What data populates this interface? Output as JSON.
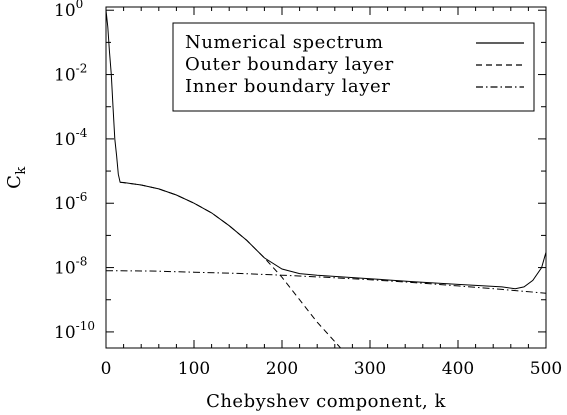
{
  "chart_data": {
    "type": "line",
    "title": "",
    "xlabel": "Chebyshev component, k",
    "ylabel": "C",
    "ylabel_subscript": "k",
    "xlim": [
      0,
      500
    ],
    "ylim_log10": [
      -10.5,
      0.1
    ],
    "yscale": "log",
    "grid": false,
    "legend_position": "top-right",
    "x_ticks": [
      "0",
      "100",
      "200",
      "300",
      "400",
      "500"
    ],
    "y_ticks": [
      {
        "base": "10",
        "exp": "0"
      },
      {
        "base": "10",
        "exp": "-2"
      },
      {
        "base": "10",
        "exp": "-4"
      },
      {
        "base": "10",
        "exp": "-6"
      },
      {
        "base": "10",
        "exp": "-8"
      },
      {
        "base": "10",
        "exp": "-10"
      }
    ],
    "series": [
      {
        "name": "Numerical spectrum",
        "style": "solid",
        "points": [
          [
            0,
            1.0
          ],
          [
            2,
            0.3
          ],
          [
            4,
            0.05
          ],
          [
            6,
            0.01
          ],
          [
            8,
            0.001
          ],
          [
            10,
            0.0001
          ],
          [
            12,
            3e-05
          ],
          [
            14,
            8e-06
          ],
          [
            16,
            4.5e-06
          ],
          [
            20,
            4.4e-06
          ],
          [
            40,
            3.7e-06
          ],
          [
            60,
            2.8e-06
          ],
          [
            80,
            1.8e-06
          ],
          [
            100,
            1e-06
          ],
          [
            120,
            5e-07
          ],
          [
            140,
            2e-07
          ],
          [
            160,
            7e-08
          ],
          [
            180,
            2e-08
          ],
          [
            200,
            9e-09
          ],
          [
            220,
            6.5e-09
          ],
          [
            240,
            5.8e-09
          ],
          [
            300,
            4.5e-09
          ],
          [
            350,
            3.6e-09
          ],
          [
            400,
            3e-09
          ],
          [
            450,
            2.5e-09
          ],
          [
            465,
            2.2e-09
          ],
          [
            475,
            2.5e-09
          ],
          [
            485,
            4e-09
          ],
          [
            495,
            1e-08
          ],
          [
            500,
            3e-08
          ]
        ]
      },
      {
        "name": "Outer boundary layer",
        "style": "dashed",
        "points": [
          [
            16,
            4.5e-06
          ],
          [
            40,
            3.7e-06
          ],
          [
            60,
            2.8e-06
          ],
          [
            80,
            1.8e-06
          ],
          [
            100,
            1e-06
          ],
          [
            120,
            5e-07
          ],
          [
            140,
            2e-07
          ],
          [
            160,
            7e-08
          ],
          [
            180,
            2e-08
          ],
          [
            200,
            5e-09
          ],
          [
            220,
            1e-09
          ],
          [
            240,
            2e-10
          ],
          [
            260,
            5e-11
          ],
          [
            270,
            2.5e-11
          ]
        ]
      },
      {
        "name": "Inner boundary layer",
        "style": "dashdot",
        "points": [
          [
            0,
            8e-09
          ],
          [
            50,
            7.8e-09
          ],
          [
            100,
            7.2e-09
          ],
          [
            150,
            6.6e-09
          ],
          [
            200,
            5.8e-09
          ],
          [
            250,
            5e-09
          ],
          [
            300,
            4.2e-09
          ],
          [
            350,
            3.4e-09
          ],
          [
            400,
            2.7e-09
          ],
          [
            450,
            2.1e-09
          ],
          [
            500,
            1.6e-09
          ]
        ]
      }
    ]
  }
}
